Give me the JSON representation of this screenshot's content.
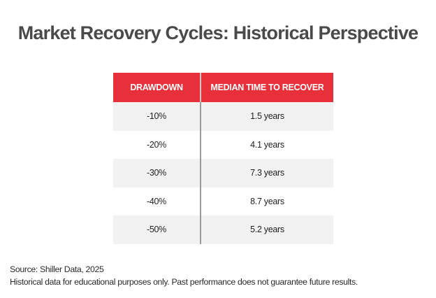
{
  "title": "Market Recovery Cycles: Historical Perspective",
  "table": {
    "headers": [
      "DRAWDOWN",
      "MEDIAN TIME TO RECOVER"
    ],
    "rows": [
      [
        "-10%",
        "1.5 years"
      ],
      [
        "-20%",
        "4.1 years"
      ],
      [
        "-30%",
        "7.3 years"
      ],
      [
        "-40%",
        "8.7 years"
      ],
      [
        "-50%",
        "5.2 years"
      ]
    ]
  },
  "footer": {
    "source": "Source: Shiller Data, 2025",
    "disclaimer": "Historical data for educational purposes only. Past performance does not guarantee future results."
  },
  "colors": {
    "header_background": "#e8303a",
    "shaded_row": "#f2f2f2",
    "title_text": "#4a4a4a"
  }
}
